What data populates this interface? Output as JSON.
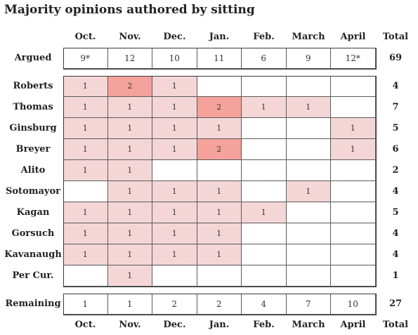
{
  "title": "Majority opinions authored by sitting",
  "colors": {
    "light": "#f5d6d6",
    "dark": "#f4a29b",
    "empty": "#ffffff",
    "border": "#5a5a5a"
  },
  "chart_data": {
    "type": "table",
    "columns": [
      "Oct.",
      "Nov.",
      "Dec.",
      "Jan.",
      "Feb.",
      "March",
      "April"
    ],
    "total_label": "Total",
    "argued": {
      "label": "Argued",
      "values": [
        "9*",
        "12",
        "10",
        "11",
        "6",
        "9",
        "12*"
      ],
      "total": "69"
    },
    "justices": [
      {
        "name": "Roberts",
        "values": [
          "1",
          "2",
          "1",
          "",
          "",
          "",
          ""
        ],
        "total": "4"
      },
      {
        "name": "Thomas",
        "values": [
          "1",
          "1",
          "1",
          "2",
          "1",
          "1",
          ""
        ],
        "total": "7"
      },
      {
        "name": "Ginsburg",
        "values": [
          "1",
          "1",
          "1",
          "1",
          "",
          "",
          "1"
        ],
        "total": "5"
      },
      {
        "name": "Breyer",
        "values": [
          "1",
          "1",
          "1",
          "2",
          "",
          "",
          "1"
        ],
        "total": "6"
      },
      {
        "name": "Alito",
        "values": [
          "1",
          "1",
          "",
          "",
          "",
          "",
          ""
        ],
        "total": "2"
      },
      {
        "name": "Sotomayor",
        "values": [
          "",
          "1",
          "1",
          "1",
          "",
          "1",
          ""
        ],
        "total": "4"
      },
      {
        "name": "Kagan",
        "values": [
          "1",
          "1",
          "1",
          "1",
          "1",
          "",
          ""
        ],
        "total": "5"
      },
      {
        "name": "Gorsuch",
        "values": [
          "1",
          "1",
          "1",
          "1",
          "",
          "",
          ""
        ],
        "total": "4"
      },
      {
        "name": "Kavanaugh",
        "values": [
          "1",
          "1",
          "1",
          "1",
          "",
          "",
          ""
        ],
        "total": "4"
      },
      {
        "name": "Per Cur.",
        "values": [
          "",
          "1",
          "",
          "",
          "",
          "",
          ""
        ],
        "total": "1"
      }
    ],
    "remaining": {
      "label": "Remaining",
      "values": [
        "1",
        "1",
        "2",
        "2",
        "4",
        "7",
        "10"
      ],
      "total": "27"
    }
  }
}
